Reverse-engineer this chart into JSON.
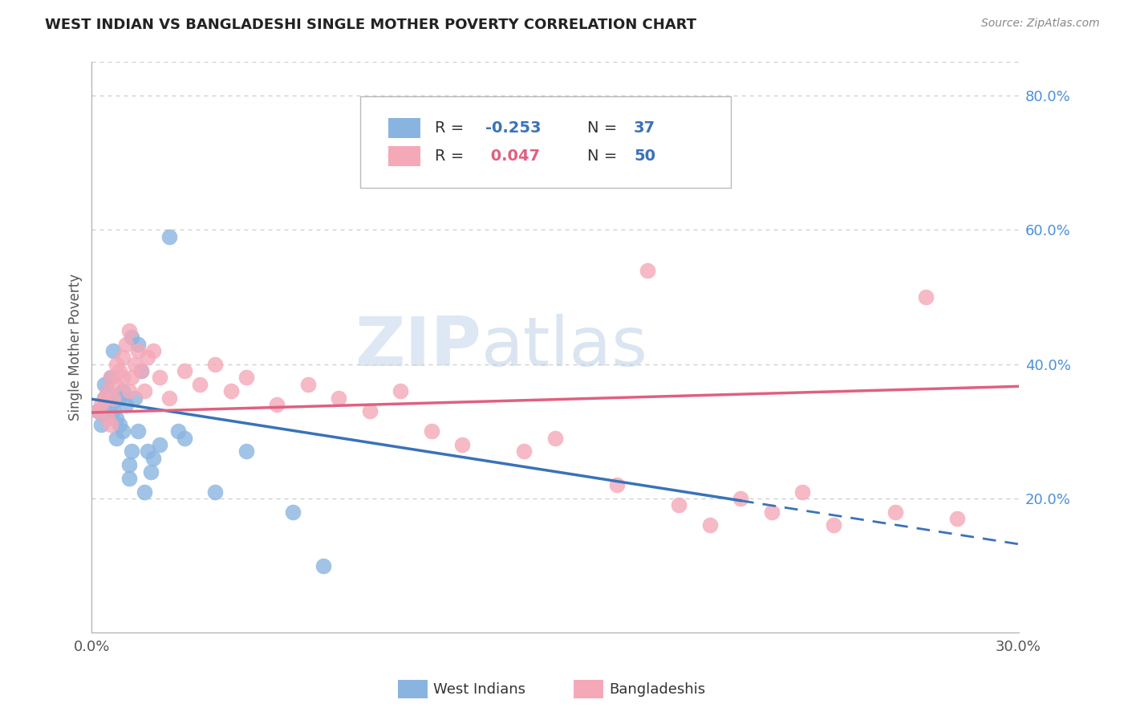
{
  "title": "WEST INDIAN VS BANGLADESHI SINGLE MOTHER POVERTY CORRELATION CHART",
  "source": "Source: ZipAtlas.com",
  "ylabel": "Single Mother Poverty",
  "xlim": [
    0.0,
    0.3
  ],
  "ylim": [
    0.0,
    0.85
  ],
  "background_color": "#ffffff",
  "grid_color": "#cccccc",
  "blue_color": "#8ab4e0",
  "pink_color": "#f4a8b8",
  "line_blue": "#3a72b8",
  "line_pink": "#e06080",
  "legend_R_blue": "-0.253",
  "legend_N_blue": "37",
  "legend_R_pink": "0.047",
  "legend_N_pink": "50",
  "watermark_zip": "ZIP",
  "watermark_atlas": "atlas",
  "west_indians_x": [
    0.002,
    0.003,
    0.004,
    0.004,
    0.005,
    0.005,
    0.006,
    0.006,
    0.007,
    0.007,
    0.008,
    0.008,
    0.009,
    0.009,
    0.01,
    0.01,
    0.011,
    0.012,
    0.012,
    0.013,
    0.013,
    0.014,
    0.015,
    0.015,
    0.016,
    0.017,
    0.018,
    0.019,
    0.02,
    0.022,
    0.025,
    0.028,
    0.03,
    0.04,
    0.05,
    0.065,
    0.075
  ],
  "west_indians_y": [
    0.33,
    0.31,
    0.35,
    0.37,
    0.32,
    0.36,
    0.34,
    0.38,
    0.33,
    0.42,
    0.29,
    0.32,
    0.31,
    0.35,
    0.3,
    0.36,
    0.34,
    0.23,
    0.25,
    0.27,
    0.44,
    0.35,
    0.3,
    0.43,
    0.39,
    0.21,
    0.27,
    0.24,
    0.26,
    0.28,
    0.59,
    0.3,
    0.29,
    0.21,
    0.27,
    0.18,
    0.1
  ],
  "bangladeshis_x": [
    0.002,
    0.003,
    0.004,
    0.005,
    0.005,
    0.006,
    0.006,
    0.007,
    0.008,
    0.008,
    0.009,
    0.01,
    0.01,
    0.011,
    0.012,
    0.012,
    0.013,
    0.014,
    0.015,
    0.016,
    0.017,
    0.018,
    0.02,
    0.022,
    0.025,
    0.03,
    0.035,
    0.04,
    0.045,
    0.05,
    0.06,
    0.07,
    0.08,
    0.09,
    0.1,
    0.11,
    0.12,
    0.14,
    0.15,
    0.17,
    0.18,
    0.19,
    0.2,
    0.21,
    0.22,
    0.23,
    0.24,
    0.26,
    0.27,
    0.28
  ],
  "bangladeshis_y": [
    0.33,
    0.34,
    0.35,
    0.32,
    0.36,
    0.31,
    0.38,
    0.35,
    0.37,
    0.4,
    0.39,
    0.38,
    0.41,
    0.43,
    0.36,
    0.45,
    0.38,
    0.4,
    0.42,
    0.39,
    0.36,
    0.41,
    0.42,
    0.38,
    0.35,
    0.39,
    0.37,
    0.4,
    0.36,
    0.38,
    0.34,
    0.37,
    0.35,
    0.33,
    0.36,
    0.3,
    0.28,
    0.27,
    0.29,
    0.22,
    0.54,
    0.19,
    0.16,
    0.2,
    0.18,
    0.21,
    0.16,
    0.18,
    0.5,
    0.17
  ]
}
